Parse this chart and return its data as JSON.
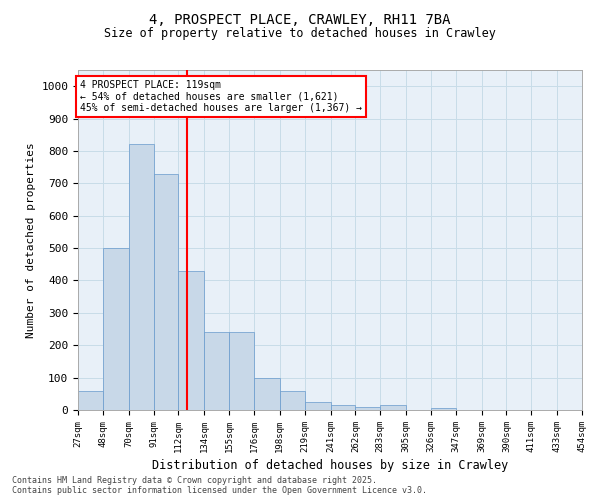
{
  "title": "4, PROSPECT PLACE, CRAWLEY, RH11 7BA",
  "subtitle": "Size of property relative to detached houses in Crawley",
  "xlabel": "Distribution of detached houses by size in Crawley",
  "ylabel": "Number of detached properties",
  "bar_color": "#c8d8e8",
  "bar_edge_color": "#6699cc",
  "grid_color": "#c8dce8",
  "background_color": "#e8f0f8",
  "vline_color": "red",
  "vline_x": 119,
  "annotation_text": "4 PROSPECT PLACE: 119sqm\n← 54% of detached houses are smaller (1,621)\n45% of semi-detached houses are larger (1,367) →",
  "annotation_box_color": "white",
  "annotation_box_edge": "red",
  "footnote": "Contains HM Land Registry data © Crown copyright and database right 2025.\nContains public sector information licensed under the Open Government Licence v3.0.",
  "bin_edges": [
    27,
    48,
    70,
    91,
    112,
    134,
    155,
    176,
    198,
    219,
    241,
    262,
    283,
    305,
    326,
    347,
    369,
    390,
    411,
    433,
    454
  ],
  "counts": [
    60,
    500,
    820,
    730,
    430,
    240,
    240,
    100,
    60,
    25,
    15,
    8,
    15,
    0,
    5,
    0,
    0,
    0,
    0,
    0
  ],
  "ylim": [
    0,
    1050
  ],
  "yticks": [
    0,
    100,
    200,
    300,
    400,
    500,
    600,
    700,
    800,
    900,
    1000
  ]
}
